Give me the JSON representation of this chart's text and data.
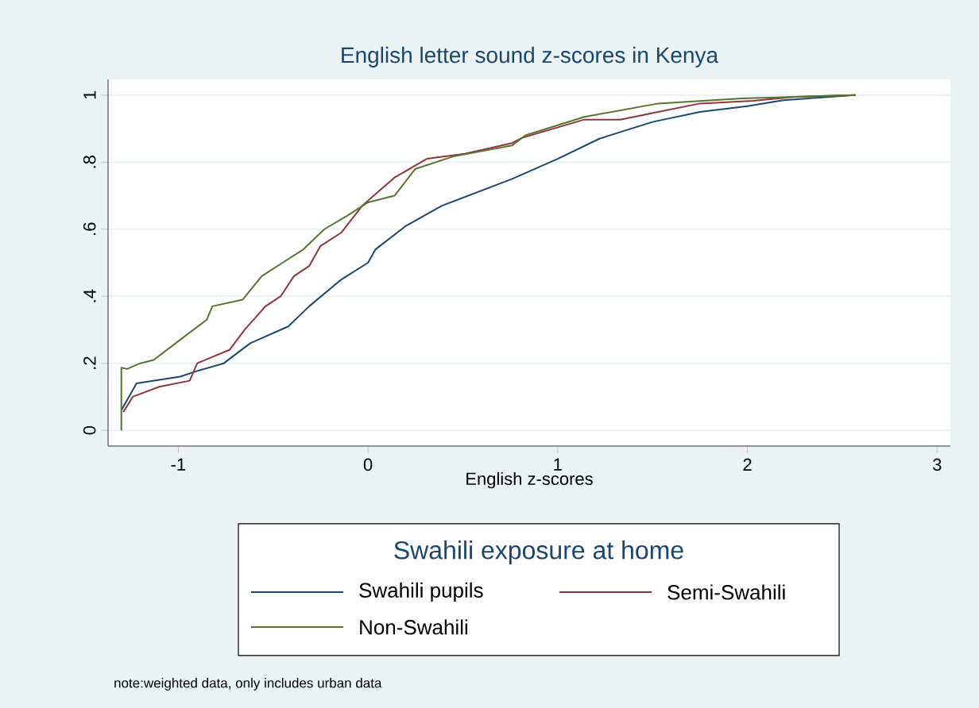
{
  "chart_data": {
    "type": "line",
    "title": "English letter sound z-scores in Kenya",
    "xlabel": "English z-scores",
    "legend_title": "Swahili exposure at home",
    "legend": "bottom",
    "grid": "y",
    "xlim": [
      -1.37,
      3.07
    ],
    "ylim": [
      -0.047,
      1.047
    ],
    "xticks": [
      -1,
      0,
      1,
      2,
      3
    ],
    "yticks": [
      0,
      {
        "value": 0.2,
        "label": ".2"
      },
      {
        "value": 0.4,
        "label": ".4"
      },
      {
        "value": 0.6,
        "label": ".6"
      },
      {
        "value": 0.8,
        "label": ".8"
      },
      1
    ],
    "series": [
      {
        "name": "Swahili pupils",
        "color": "#1a476f",
        "x": [
          -1.3,
          -1.22,
          -0.99,
          -0.9,
          -0.76,
          -0.62,
          -0.42,
          -0.31,
          -0.14,
          0,
          0.04,
          0.2,
          0.39,
          0.76,
          1.0,
          1.22,
          1.5,
          1.75,
          2.0,
          2.19,
          2.57
        ],
        "values": [
          0.06,
          0.14,
          0.16,
          0.177,
          0.2,
          0.26,
          0.31,
          0.37,
          0.45,
          0.5,
          0.54,
          0.61,
          0.67,
          0.75,
          0.81,
          0.87,
          0.92,
          0.95,
          0.967,
          0.985,
          1.0
        ]
      },
      {
        "name": "Semi-Swahili",
        "color": "#90353b",
        "x": [
          -1.29,
          -1.24,
          -1.1,
          -0.94,
          -0.9,
          -0.73,
          -0.65,
          -0.54,
          -0.46,
          -0.39,
          -0.31,
          -0.25,
          -0.14,
          -0.03,
          0.06,
          0.14,
          0.31,
          0.51,
          0.76,
          0.81,
          1.14,
          1.33,
          1.53,
          1.75,
          2.03,
          2.25,
          2.57
        ],
        "values": [
          0.054,
          0.1,
          0.13,
          0.148,
          0.2,
          0.24,
          0.3,
          0.37,
          0.4,
          0.46,
          0.49,
          0.55,
          0.59,
          0.67,
          0.715,
          0.754,
          0.81,
          0.825,
          0.857,
          0.872,
          0.927,
          0.927,
          0.95,
          0.975,
          0.983,
          0.995,
          1.0
        ]
      },
      {
        "name": "Non-Swahili",
        "color": "#55752f",
        "x": [
          -1.3,
          -1.3,
          -1.27,
          -1.2,
          -1.13,
          -0.99,
          -0.85,
          -0.82,
          -0.66,
          -0.56,
          -0.45,
          -0.34,
          -0.23,
          -0.11,
          0,
          0.14,
          0.25,
          0.45,
          0.76,
          0.83,
          1.14,
          1.53,
          1.97,
          2.57
        ],
        "values": [
          0,
          0.187,
          0.183,
          0.2,
          0.21,
          0.27,
          0.33,
          0.37,
          0.39,
          0.46,
          0.5,
          0.54,
          0.6,
          0.64,
          0.68,
          0.7,
          0.78,
          0.817,
          0.85,
          0.88,
          0.935,
          0.975,
          0.99,
          1.0
        ]
      }
    ],
    "annotations": [
      "note:weighted data, only includes urban data"
    ]
  }
}
